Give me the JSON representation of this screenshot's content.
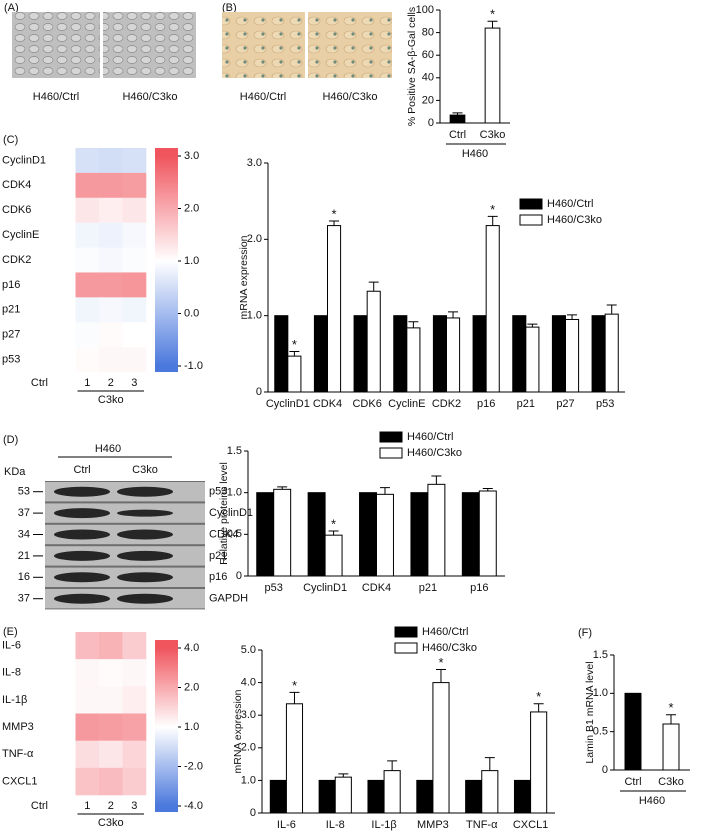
{
  "panel_labels": [
    "(A)",
    "(B)",
    "(C)",
    "(D)",
    "(E)",
    "(F)"
  ],
  "images_a": [
    "H460/Ctrl",
    "H460/C3ko"
  ],
  "images_b": [
    "H460/Ctrl",
    "H460/C3ko"
  ],
  "blot": {
    "group": "H460",
    "columns": [
      "Ctrl",
      "C3ko"
    ],
    "kda_label": "KDa",
    "kda": [
      "53",
      "37",
      "34",
      "21",
      "16",
      "37"
    ],
    "proteins": [
      "p53",
      "CyclinD1",
      "CDK4",
      "p21",
      "p16",
      "GAPDH"
    ]
  },
  "chart_data": [
    {
      "type": "bar",
      "categories": [
        "Ctrl",
        "C3ko"
      ],
      "values": [
        7,
        84
      ],
      "errors": [
        2,
        6
      ],
      "colors": [
        "#000000",
        "#ffffff"
      ],
      "ylabel": "% Positive SA-β-Gal cells",
      "ylim": [
        0,
        100
      ],
      "yticks": [
        0,
        20,
        40,
        60,
        80,
        100
      ],
      "group_label": "H460",
      "annotations": [
        {
          "x": "C3ko",
          "text": "*"
        }
      ]
    },
    {
      "type": "heatmap",
      "rows": [
        "CyclinD1",
        "CDK4",
        "CDK6",
        "CyclinE",
        "CDK2",
        "p16",
        "p21",
        "p27",
        "p53"
      ],
      "columns": [
        "Ctrl",
        "1",
        "2",
        "3"
      ],
      "column_group": "C3ko",
      "values": [
        [
          1,
          0.55,
          0.5,
          0.55
        ],
        [
          1,
          2.2,
          2.2,
          2.15
        ],
        [
          1,
          1.3,
          1.2,
          1.3
        ],
        [
          1,
          0.85,
          0.8,
          0.9
        ],
        [
          1,
          0.95,
          0.9,
          0.95
        ],
        [
          1,
          2.2,
          2.2,
          2.25
        ],
        [
          1,
          0.85,
          0.9,
          0.85
        ],
        [
          1,
          0.95,
          1.05,
          1.0
        ],
        [
          1,
          1.05,
          1.1,
          1.1
        ]
      ],
      "colorbar_ticks": [
        {
          "value": 3,
          "label": "3.0"
        },
        {
          "value": 2,
          "label": "2.0"
        },
        {
          "value": 1,
          "label": "1.0"
        },
        {
          "value": 0,
          "label": "0.0"
        },
        {
          "value": -1,
          "label": "-1.0"
        }
      ],
      "colormap": [
        "#4a78dc",
        "#ffffff",
        "#f0555e"
      ]
    },
    {
      "type": "bar",
      "categories": [
        "CyclinD1",
        "CDK4",
        "CDK6",
        "CyclinE",
        "CDK2",
        "p16",
        "p21",
        "p27",
        "p53"
      ],
      "series": [
        {
          "name": "H460/Ctrl",
          "color": "#000000",
          "values": [
            1,
            1,
            1,
            1,
            1,
            1,
            1,
            1,
            1
          ]
        },
        {
          "name": "H460/C3ko",
          "color": "#ffffff",
          "values": [
            0.47,
            2.18,
            1.32,
            0.84,
            0.97,
            2.18,
            0.85,
            0.95,
            1.02
          ],
          "errors": [
            0.06,
            0.06,
            0.12,
            0.08,
            0.08,
            0.12,
            0.04,
            0.06,
            0.12
          ]
        }
      ],
      "ylabel": "mRNA expression",
      "ylim": [
        0,
        3
      ],
      "yticks": [
        0,
        {
          "value": 1,
          "label": "1.0"
        },
        {
          "value": 2,
          "label": "2.0"
        },
        {
          "value": 3,
          "label": "3.0"
        }
      ],
      "annotations": [
        {
          "x": "CyclinD1",
          "text": "*"
        },
        {
          "x": "CDK4",
          "text": "*"
        },
        {
          "x": "p16",
          "text": "*"
        }
      ]
    },
    {
      "type": "bar",
      "categories": [
        "p53",
        "CyclinD1",
        "CDK4",
        "p21",
        "p16"
      ],
      "series": [
        {
          "name": "H460/Ctrl",
          "color": "#000000",
          "values": [
            1,
            1,
            1,
            1,
            1
          ]
        },
        {
          "name": "H460/C3ko",
          "color": "#ffffff",
          "values": [
            1.04,
            0.49,
            0.98,
            1.1,
            1.02
          ],
          "errors": [
            0.03,
            0.05,
            0.08,
            0.1,
            0.03
          ]
        }
      ],
      "ylabel": "Relative proteins level",
      "ylim": [
        0,
        1.5
      ],
      "yticks": [
        0,
        {
          "value": 0.5,
          "label": "0.5"
        },
        {
          "value": 1,
          "label": "1.0"
        },
        {
          "value": 1.5,
          "label": "1.5"
        }
      ],
      "annotations": [
        {
          "x": "CyclinD1",
          "text": "*"
        }
      ]
    },
    {
      "type": "heatmap",
      "rows": [
        "IL-6",
        "IL-8",
        "IL-1β",
        "MMP3",
        "TNF-α",
        "CXCL1"
      ],
      "columns": [
        "Ctrl",
        "1",
        "2",
        "3"
      ],
      "column_group": "C3ko",
      "values": [
        [
          1,
          1.8,
          1.9,
          1.6
        ],
        [
          1,
          1.1,
          1.05,
          1.1
        ],
        [
          1,
          1.1,
          1.1,
          1.2
        ],
        [
          1,
          2.4,
          2.3,
          2.2
        ],
        [
          1,
          1.4,
          1.3,
          1.5
        ],
        [
          1,
          1.7,
          1.8,
          1.6
        ]
      ],
      "colorbar_ticks": [
        {
          "value": 4,
          "label": "4.0"
        },
        {
          "value": 2,
          "label": "2.0"
        },
        {
          "value": 1,
          "label": "1.0"
        },
        {
          "value": -2,
          "label": "-2.0"
        },
        {
          "value": -4,
          "label": "-4.0"
        }
      ],
      "colormap": [
        "#4a78dc",
        "#ffffff",
        "#f0555e"
      ]
    },
    {
      "type": "bar",
      "categories": [
        "IL-6",
        "IL-8",
        "IL-1β",
        "MMP3",
        "TNF-α",
        "CXCL1"
      ],
      "series": [
        {
          "name": "H460/Ctrl",
          "color": "#000000",
          "values": [
            1,
            1,
            1,
            1,
            1,
            1
          ]
        },
        {
          "name": "H460/C3ko",
          "color": "#ffffff",
          "values": [
            3.35,
            1.1,
            1.3,
            4.0,
            1.3,
            3.1
          ],
          "errors": [
            0.35,
            0.1,
            0.3,
            0.4,
            0.4,
            0.25
          ]
        }
      ],
      "ylabel": "mRNA expression",
      "ylim": [
        0,
        5
      ],
      "yticks": [
        0,
        {
          "value": 1,
          "label": "1.0"
        },
        {
          "value": 2,
          "label": "2.0"
        },
        {
          "value": 3,
          "label": "3.0"
        },
        {
          "value": 4,
          "label": "4.0"
        },
        {
          "value": 5,
          "label": "5.0"
        }
      ],
      "annotations": [
        {
          "x": "IL-6",
          "text": "*"
        },
        {
          "x": "MMP3",
          "text": "*"
        },
        {
          "x": "CXCL1",
          "text": "*"
        }
      ]
    },
    {
      "type": "bar",
      "categories": [
        "Ctrl",
        "C3ko"
      ],
      "values": [
        1,
        0.6
      ],
      "errors": [
        null,
        0.12
      ],
      "colors": [
        "#000000",
        "#ffffff"
      ],
      "ylabel": "Lamin B1 mRNA level",
      "ylim": [
        0,
        1.5
      ],
      "yticks": [
        0,
        {
          "value": 0.5,
          "label": "0.5"
        },
        {
          "value": 1,
          "label": "1.0"
        },
        {
          "value": 1.5,
          "label": "1.5"
        }
      ],
      "group_label": "H460",
      "annotations": [
        {
          "x": "C3ko",
          "text": "*"
        }
      ]
    }
  ]
}
